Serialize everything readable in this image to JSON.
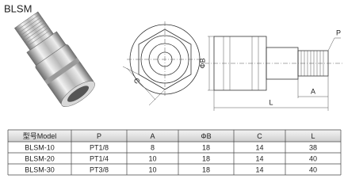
{
  "title": "BLSM",
  "drawing": {
    "labels": {
      "c": "C",
      "b": "ΦB",
      "p": "P",
      "a": "A",
      "l": "L"
    }
  },
  "table": {
    "header": [
      "型号Model",
      "P",
      "A",
      "ΦB",
      "C",
      "L"
    ],
    "rows": [
      [
        "BLSM-10",
        "PT1/8",
        "8",
        "18",
        "14",
        "38"
      ],
      [
        "BLSM-20",
        "PT1/4",
        "10",
        "18",
        "14",
        "40"
      ],
      [
        "BLSM-30",
        "PT3/8",
        "10",
        "18",
        "14",
        "40"
      ]
    ]
  }
}
